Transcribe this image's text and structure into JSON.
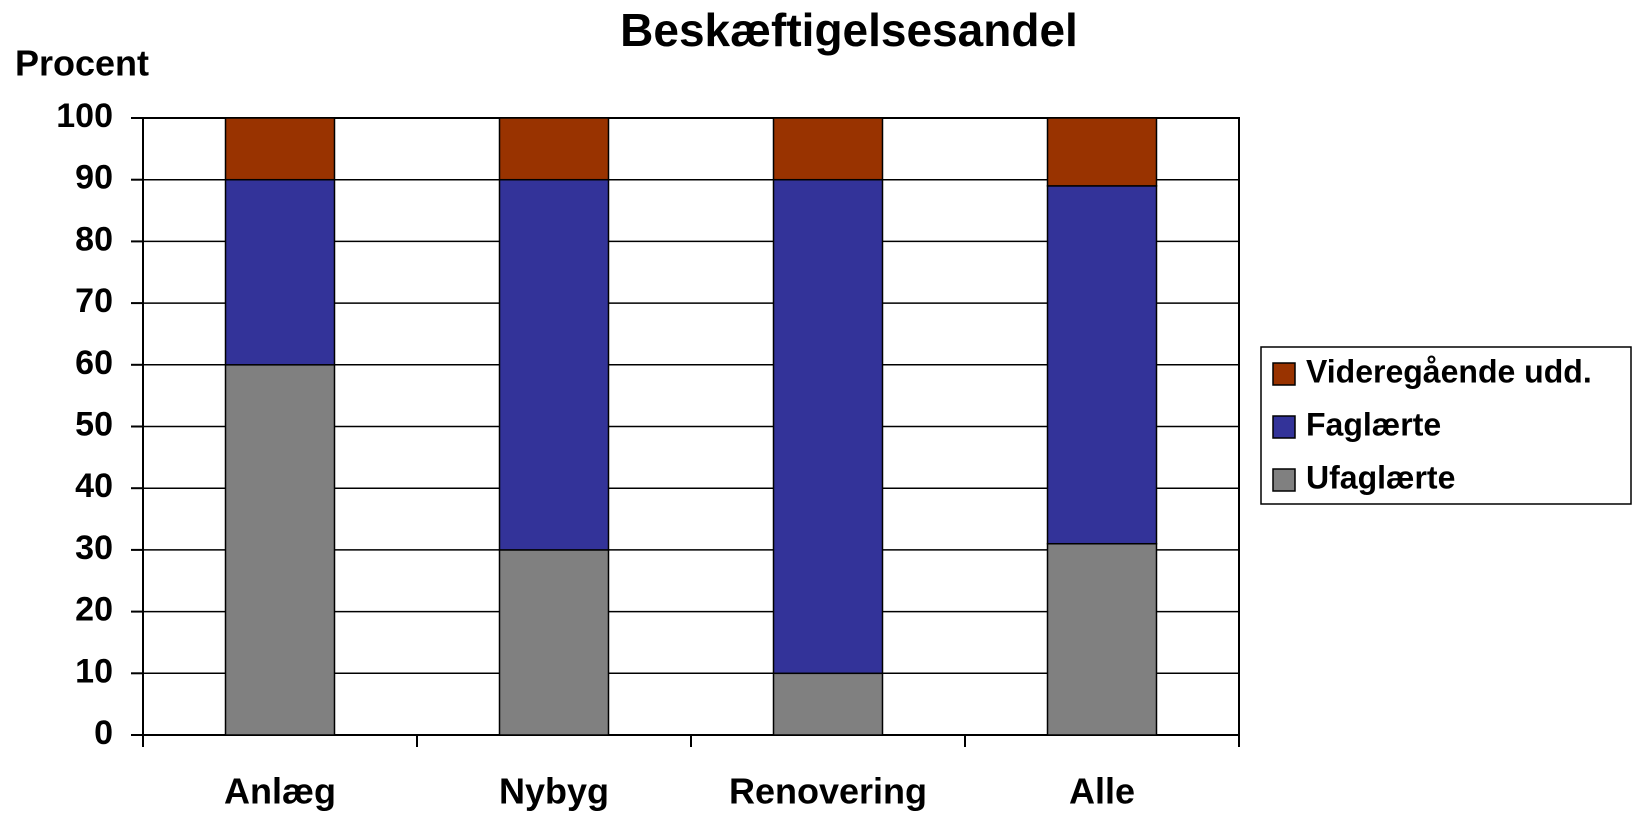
{
  "chart_data": {
    "type": "stacked_bar",
    "title": "Beskæftigelsesandel",
    "y_label": "Procent",
    "categories": [
      "Anlæg",
      "Nybyg",
      "Renovering",
      "Alle"
    ],
    "series": [
      {
        "name": "Ufaglærte",
        "color": "#808080",
        "values": [
          60,
          30,
          10,
          31
        ]
      },
      {
        "name": "Faglærte",
        "color": "#333399",
        "values": [
          30,
          60,
          80,
          58
        ]
      },
      {
        "name": "Videregående udd.",
        "color": "#993300",
        "values": [
          10,
          10,
          10,
          11
        ]
      }
    ],
    "ylim": [
      0,
      100
    ],
    "yticks": [
      0,
      10,
      20,
      30,
      40,
      50,
      60,
      70,
      80,
      90,
      100
    ],
    "grid": true,
    "legend": "right"
  }
}
